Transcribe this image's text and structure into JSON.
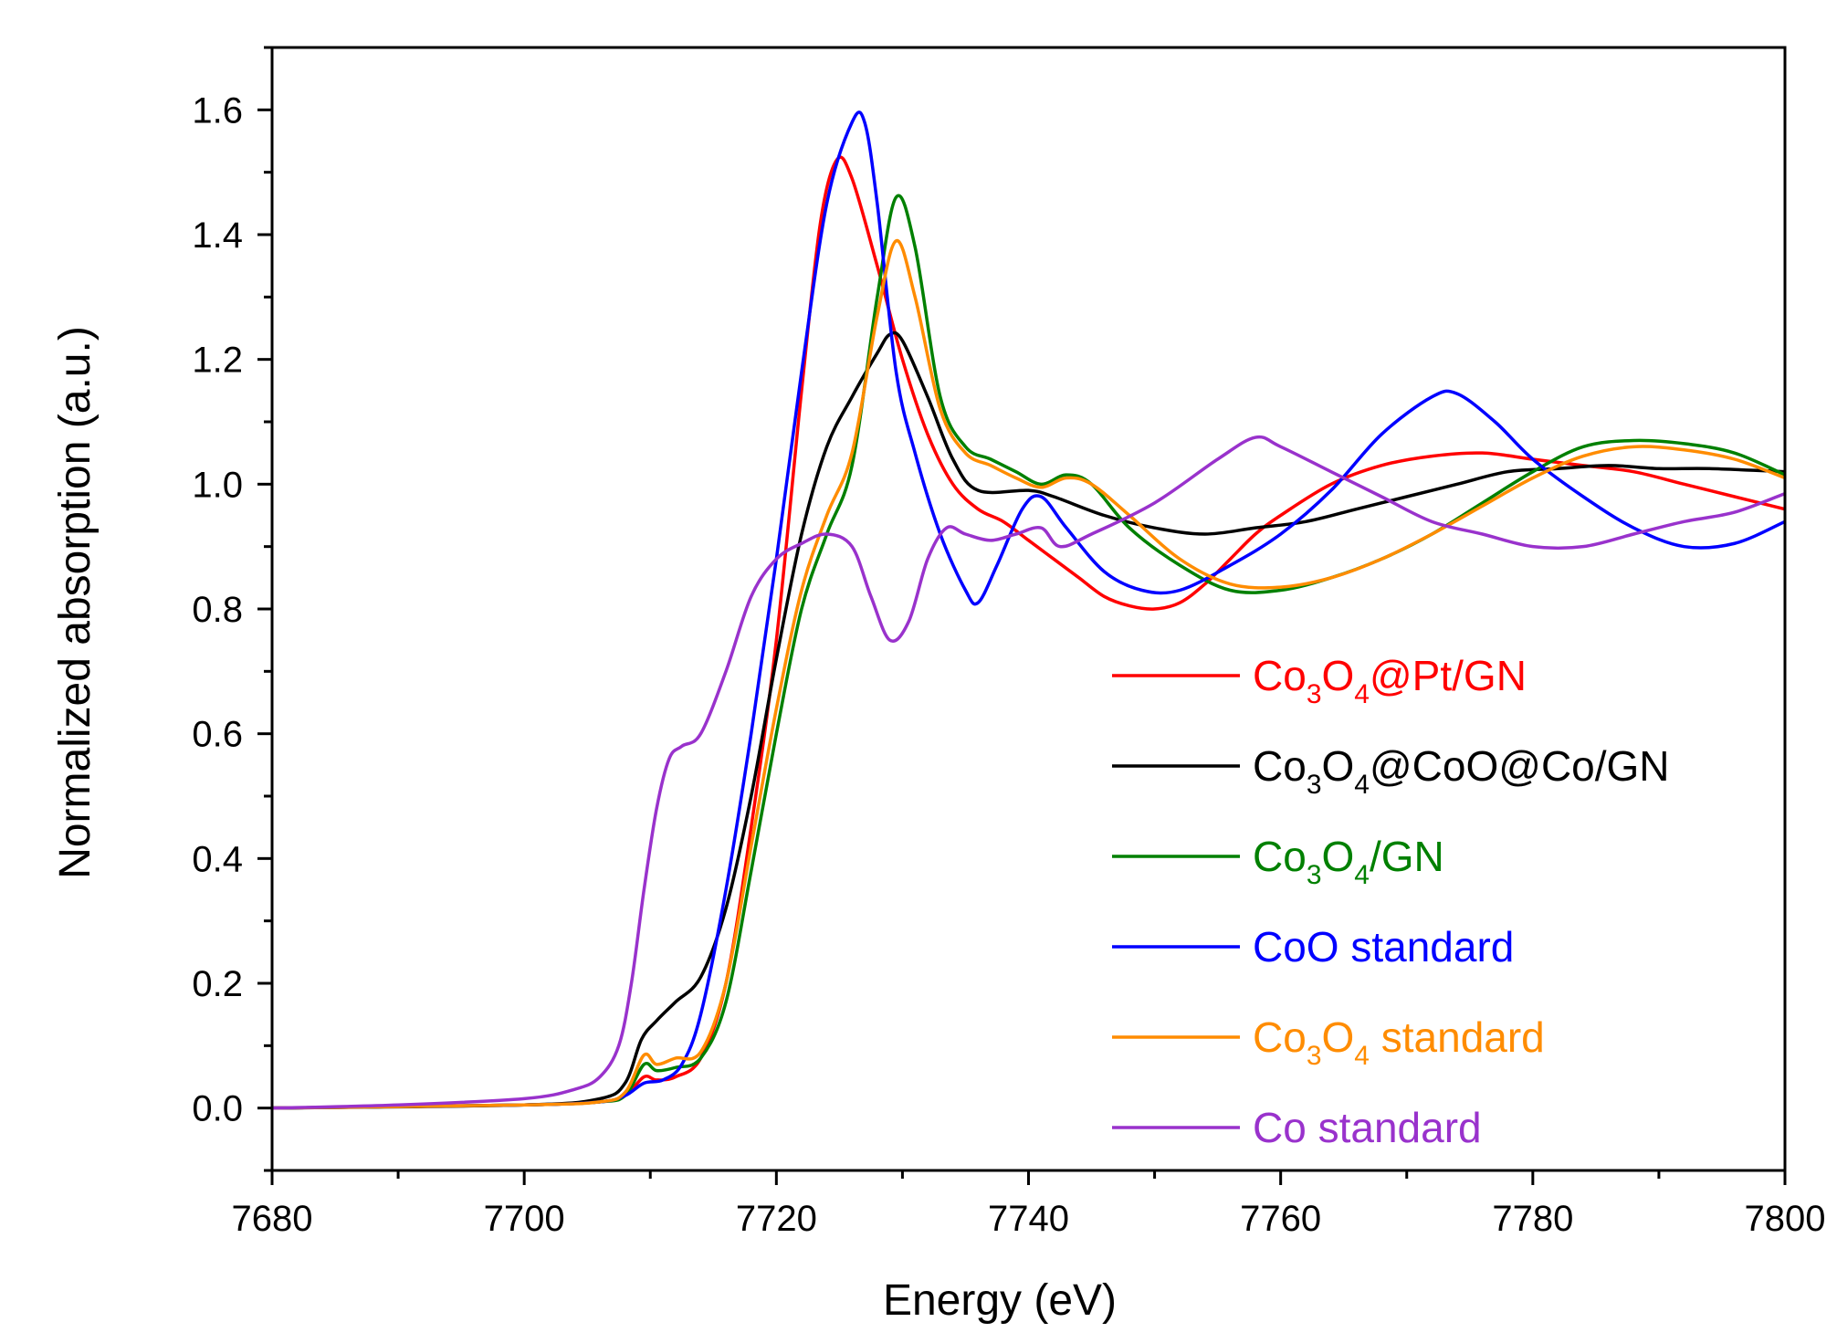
{
  "chart_data": {
    "type": "line",
    "xlabel": "Energy (eV)",
    "ylabel": "Normalized absorption (a.u.)",
    "xlim": [
      7680,
      7800
    ],
    "ylim": [
      -0.1,
      1.7
    ],
    "xticks": [
      7680,
      7700,
      7720,
      7740,
      7760,
      7780,
      7800
    ],
    "xtick_labels": [
      "7680",
      "7700",
      "7720",
      "7740",
      "7760",
      "7780",
      "7800"
    ],
    "yticks": [
      0.0,
      0.2,
      0.4,
      0.6,
      0.8,
      1.0,
      1.2,
      1.4,
      1.6
    ],
    "ytick_labels": [
      "0.0",
      "0.2",
      "0.4",
      "0.6",
      "0.8",
      "1.0",
      "1.2",
      "1.4",
      "1.6"
    ],
    "grid": false,
    "legend_position": "center-right",
    "series": [
      {
        "name": "Co3O4@Pt/GN",
        "label_parts": [
          {
            "t": "Co"
          },
          {
            "t": "3",
            "sub": true
          },
          {
            "t": "O"
          },
          {
            "t": "4",
            "sub": true
          },
          {
            "t": "@Pt/GN"
          }
        ],
        "color": "#ff0000",
        "x": [
          7680,
          7700,
          7706,
          7708,
          7709.5,
          7710.5,
          7712,
          7714,
          7716,
          7718,
          7720,
          7722,
          7723.5,
          7724.8,
          7726,
          7728,
          7730,
          7732,
          7734,
          7736,
          7738,
          7740,
          7742,
          7744,
          7746,
          7748,
          7750,
          7752,
          7754,
          7756,
          7758,
          7760,
          7764,
          7768,
          7772,
          7776,
          7780,
          7784,
          7788,
          7792,
          7796,
          7800
        ],
        "y": [
          0.0,
          0.005,
          0.01,
          0.02,
          0.05,
          0.045,
          0.05,
          0.08,
          0.2,
          0.45,
          0.75,
          1.15,
          1.42,
          1.52,
          1.49,
          1.35,
          1.2,
          1.08,
          1.0,
          0.96,
          0.94,
          0.91,
          0.88,
          0.85,
          0.82,
          0.805,
          0.8,
          0.81,
          0.84,
          0.88,
          0.92,
          0.95,
          1.0,
          1.03,
          1.045,
          1.05,
          1.04,
          1.03,
          1.02,
          1.0,
          0.98,
          0.96
        ]
      },
      {
        "name": "Co3O4@CoO@Co/GN",
        "label_parts": [
          {
            "t": "Co"
          },
          {
            "t": "3",
            "sub": true
          },
          {
            "t": "O"
          },
          {
            "t": "4",
            "sub": true
          },
          {
            "t": "@CoO@Co/GN"
          }
        ],
        "color": "#000000",
        "x": [
          7680,
          7700,
          7706,
          7708,
          7709.3,
          7710.5,
          7712,
          7714,
          7716,
          7718,
          7720,
          7722,
          7724,
          7726,
          7728,
          7729,
          7730,
          7732,
          7734,
          7736,
          7740,
          7742,
          7746,
          7750,
          7754,
          7758,
          7762,
          7766,
          7770,
          7774,
          7778,
          7782,
          7786,
          7790,
          7794,
          7800
        ],
        "y": [
          0.0,
          0.005,
          0.015,
          0.04,
          0.11,
          0.14,
          0.17,
          0.21,
          0.32,
          0.5,
          0.72,
          0.92,
          1.06,
          1.14,
          1.21,
          1.24,
          1.23,
          1.14,
          1.04,
          0.99,
          0.99,
          0.98,
          0.95,
          0.93,
          0.92,
          0.93,
          0.94,
          0.96,
          0.98,
          1.0,
          1.02,
          1.025,
          1.03,
          1.025,
          1.025,
          1.02
        ]
      },
      {
        "name": "Co3O4/GN",
        "label_parts": [
          {
            "t": "Co"
          },
          {
            "t": "3",
            "sub": true
          },
          {
            "t": "O"
          },
          {
            "t": "4",
            "sub": true
          },
          {
            "t": "/GN"
          }
        ],
        "color": "#008000",
        "x": [
          7680,
          7700,
          7706,
          7708,
          7709.5,
          7710.5,
          7712,
          7714,
          7716,
          7718,
          7720,
          7722,
          7724,
          7726,
          7728,
          7729.5,
          7731,
          7733,
          7735,
          7737,
          7739,
          7741,
          7743,
          7745,
          7748,
          7752,
          7756,
          7760,
          7764,
          7768,
          7772,
          7776,
          7780,
          7784,
          7788,
          7792,
          7796,
          7800
        ],
        "y": [
          0.0,
          0.005,
          0.01,
          0.02,
          0.07,
          0.06,
          0.065,
          0.08,
          0.17,
          0.38,
          0.6,
          0.8,
          0.92,
          1.03,
          1.3,
          1.46,
          1.38,
          1.14,
          1.06,
          1.04,
          1.02,
          1.0,
          1.015,
          1.0,
          0.93,
          0.87,
          0.83,
          0.83,
          0.85,
          0.88,
          0.92,
          0.97,
          1.02,
          1.06,
          1.07,
          1.065,
          1.05,
          1.015
        ]
      },
      {
        "name": "CoO standard",
        "label_parts": [
          {
            "t": "CoO standard"
          }
        ],
        "color": "#0000ff",
        "x": [
          7680,
          7700,
          7706,
          7708,
          7709.5,
          7711,
          7712.5,
          7714,
          7716,
          7718,
          7720,
          7722,
          7724,
          7726,
          7727,
          7728,
          7729.5,
          7731,
          7733,
          7735,
          7736,
          7737.5,
          7739.5,
          7741,
          7743,
          7746,
          7749,
          7752,
          7756,
          7760,
          7764,
          7768,
          7772,
          7774,
          7777,
          7780,
          7784,
          7788,
          7792,
          7796,
          7800
        ],
        "y": [
          0.0,
          0.005,
          0.01,
          0.02,
          0.04,
          0.045,
          0.07,
          0.15,
          0.35,
          0.6,
          0.88,
          1.18,
          1.45,
          1.58,
          1.58,
          1.45,
          1.18,
          1.05,
          0.92,
          0.83,
          0.81,
          0.87,
          0.96,
          0.98,
          0.93,
          0.86,
          0.83,
          0.83,
          0.87,
          0.92,
          0.99,
          1.08,
          1.14,
          1.145,
          1.1,
          1.04,
          0.98,
          0.93,
          0.9,
          0.905,
          0.94
        ]
      },
      {
        "name": "Co3O4 standard",
        "label_parts": [
          {
            "t": "Co"
          },
          {
            "t": "3",
            "sub": true
          },
          {
            "t": "O"
          },
          {
            "t": "4",
            "sub": true
          },
          {
            "t": " standard"
          }
        ],
        "color": "#ff8c00",
        "x": [
          7680,
          7700,
          7706,
          7708,
          7709.5,
          7710.5,
          7712,
          7714,
          7716,
          7718,
          7720,
          7722,
          7724,
          7726,
          7728,
          7729.5,
          7731,
          7733,
          7735,
          7737,
          7739,
          7741,
          7743,
          7745,
          7748,
          7752,
          7756,
          7760,
          7764,
          7768,
          7772,
          7776,
          7780,
          7784,
          7788,
          7792,
          7796,
          7800
        ],
        "y": [
          0.0,
          0.005,
          0.01,
          0.025,
          0.085,
          0.07,
          0.08,
          0.09,
          0.2,
          0.42,
          0.64,
          0.83,
          0.95,
          1.05,
          1.27,
          1.39,
          1.3,
          1.12,
          1.05,
          1.03,
          1.01,
          0.995,
          1.01,
          1.0,
          0.95,
          0.88,
          0.84,
          0.835,
          0.85,
          0.88,
          0.92,
          0.965,
          1.01,
          1.045,
          1.06,
          1.055,
          1.04,
          1.01
        ]
      },
      {
        "name": "Co standard",
        "label_parts": [
          {
            "t": "Co standard"
          }
        ],
        "color": "#9932cc",
        "x": [
          7680,
          7690,
          7700,
          7704,
          7706,
          7707.5,
          7708.5,
          7709.5,
          7710.5,
          7711.5,
          7712.5,
          7714,
          7716,
          7718,
          7720,
          7722,
          7724,
          7726,
          7727.5,
          7729,
          7730.5,
          7732,
          7733.5,
          7735,
          7737,
          7739,
          7741,
          7742.5,
          7745,
          7750,
          7755,
          7758,
          7760,
          7764,
          7768,
          7772,
          7776,
          7780,
          7784,
          7788,
          7792,
          7796,
          7800
        ],
        "y": [
          0.0,
          0.005,
          0.015,
          0.03,
          0.05,
          0.1,
          0.2,
          0.35,
          0.48,
          0.56,
          0.58,
          0.6,
          0.7,
          0.82,
          0.88,
          0.905,
          0.92,
          0.9,
          0.82,
          0.75,
          0.78,
          0.88,
          0.93,
          0.92,
          0.91,
          0.92,
          0.93,
          0.9,
          0.92,
          0.97,
          1.04,
          1.075,
          1.06,
          1.02,
          0.98,
          0.94,
          0.92,
          0.9,
          0.9,
          0.92,
          0.94,
          0.955,
          0.985
        ]
      }
    ]
  }
}
